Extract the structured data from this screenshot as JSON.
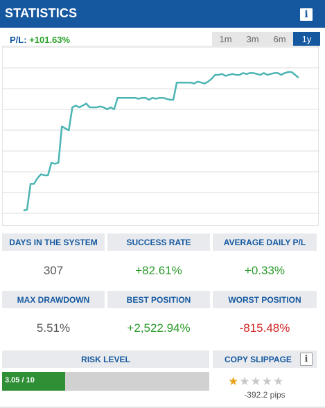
{
  "header": {
    "title": "STATISTICS",
    "info_icon": "i"
  },
  "pl": {
    "label": "P/L:",
    "value": "+101.63%"
  },
  "tabs": [
    {
      "label": "1m",
      "active": false
    },
    {
      "label": "3m",
      "active": false
    },
    {
      "label": "6m",
      "active": false
    },
    {
      "label": "1y",
      "active": true
    }
  ],
  "chart_data": {
    "type": "line",
    "grid": true,
    "series": [
      {
        "color": "#4cb4b4",
        "values": [
          2,
          2.5,
          16,
          16,
          19,
          21,
          20.5,
          20.5,
          27,
          26.5,
          27,
          46,
          45,
          44,
          56,
          57,
          56,
          57,
          58,
          56,
          56,
          56,
          56.5,
          56,
          55,
          56,
          55,
          61,
          61,
          61,
          61,
          61,
          61,
          60.5,
          61,
          61,
          60,
          61,
          60.5,
          61,
          61,
          60.5,
          60,
          60,
          69,
          69,
          69,
          69,
          69,
          68.5,
          69.5,
          69,
          68.5,
          69.5,
          71,
          73,
          73,
          73.5,
          72.5,
          73,
          73.5,
          73,
          73,
          74,
          73.5,
          74,
          74,
          73.5,
          73,
          74,
          73,
          73.5,
          74,
          74,
          73,
          74,
          74.5,
          74.5,
          73,
          71.5
        ]
      }
    ],
    "colors": {
      "line": "#4cb4b4",
      "grid": "#dcdcdc"
    }
  },
  "stats": {
    "days_label": "DAYS IN THE SYSTEM",
    "days_value": "307",
    "success_label": "SUCCESS RATE",
    "success_value": "+82.61%",
    "avg_label": "AVERAGE DAILY P/L",
    "avg_value": "+0.33%",
    "drawdown_label": "MAX DRAWDOWN",
    "drawdown_value": "5.51%",
    "best_label": "BEST POSITION",
    "best_value": "+2,522.94%",
    "worst_label": "WORST POSITION",
    "worst_value": "-815.48%"
  },
  "risk": {
    "label": "RISK LEVEL",
    "value_text": "3.05 / 10",
    "fraction": 0.305
  },
  "slippage": {
    "label": "COPY SLIPPAGE",
    "info_icon": "i",
    "rating": 1,
    "max_rating": 5,
    "pips": "-392.2 pips"
  },
  "colors": {
    "brand_blue": "#1558a0",
    "positive": "#2a9a2a",
    "negative": "#d02424",
    "risk_fill": "#2f8f35",
    "star_on": "#e8a317",
    "star_off": "#c8c8c8"
  }
}
